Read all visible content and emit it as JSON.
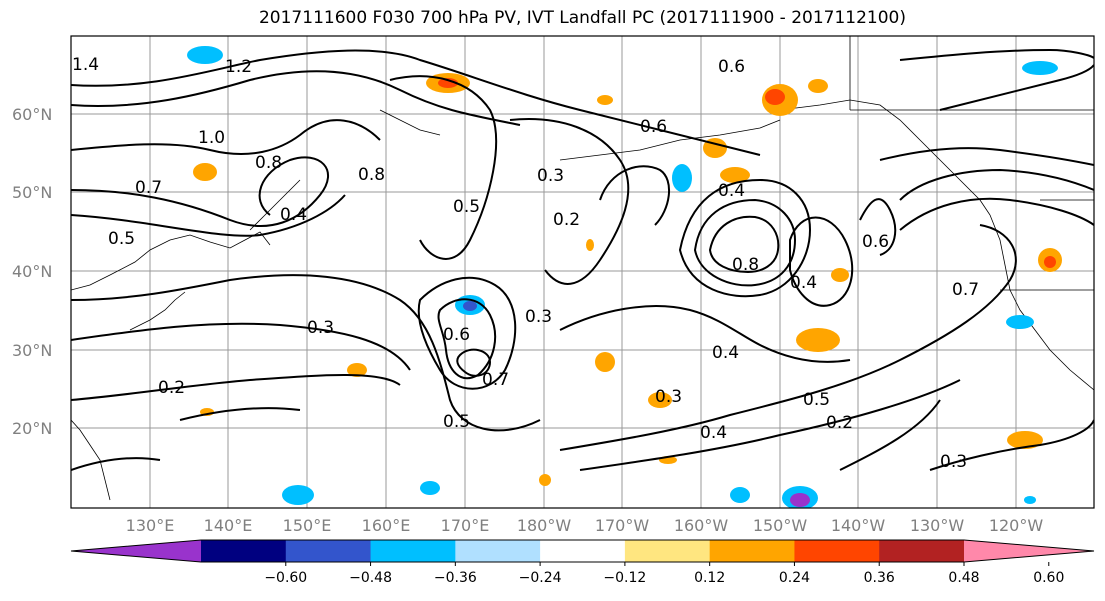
{
  "title": "2017111600 F030 700 hPa PV, IVT Landfall PC (2017111900 - 2017112100)",
  "lat_labels": [
    "60°N",
    "50°N",
    "40°N",
    "30°N",
    "20°N"
  ],
  "lon_labels": [
    "130°E",
    "140°E",
    "150°E",
    "160°E",
    "170°E",
    "180°W",
    "170°W",
    "160°W",
    "150°W",
    "140°W",
    "130°W",
    "120°W"
  ],
  "contour_labels": [
    "1.4",
    "1.2",
    "1.0",
    "0.8",
    "0.7",
    "0.5",
    "0.4",
    "0.3",
    "0.2",
    "0.6",
    "0.8",
    "0.4",
    "0.3",
    "0.5",
    "0.2",
    "0.7",
    "0.6",
    "0.3",
    "0.4",
    "0.5",
    "0.6",
    "0.3",
    "0.7",
    "0.8",
    "0.4",
    "0.2",
    "0.3",
    "0.5",
    "0.4",
    "0.6"
  ],
  "colorbar": {
    "ticks": [
      "−0.60",
      "−0.48",
      "−0.36",
      "−0.24",
      "−0.12",
      "0.12",
      "0.24",
      "0.36",
      "0.48",
      "0.60"
    ],
    "colors": [
      "#9933cc",
      "#000080",
      "#3355cc",
      "#00bfff",
      "#b0e0ff",
      "#ffffff",
      "#ffe680",
      "#ffa500",
      "#ff4500",
      "#b22222",
      "#ff88aa"
    ]
  }
}
